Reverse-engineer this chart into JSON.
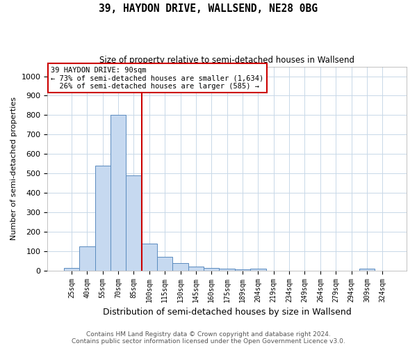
{
  "title1": "39, HAYDON DRIVE, WALLSEND, NE28 0BG",
  "title2": "Size of property relative to semi-detached houses in Wallsend",
  "xlabel": "Distribution of semi-detached houses by size in Wallsend",
  "ylabel": "Number of semi-detached properties",
  "footnote": "Contains HM Land Registry data © Crown copyright and database right 2024.\nContains public sector information licensed under the Open Government Licence v3.0.",
  "bar_labels": [
    "25sqm",
    "40sqm",
    "55sqm",
    "70sqm",
    "85sqm",
    "100sqm",
    "115sqm",
    "130sqm",
    "145sqm",
    "160sqm",
    "175sqm",
    "189sqm",
    "204sqm",
    "219sqm",
    "234sqm",
    "249sqm",
    "264sqm",
    "279sqm",
    "294sqm",
    "309sqm",
    "324sqm"
  ],
  "bar_values": [
    15,
    125,
    540,
    800,
    490,
    140,
    72,
    38,
    22,
    12,
    8,
    5,
    8,
    0,
    0,
    0,
    0,
    0,
    0,
    8,
    0
  ],
  "bar_color": "#c6d9f0",
  "bar_edge_color": "#5a8bbf",
  "property_line_x": 4.5,
  "property_label": "39 HAYDON DRIVE: 90sqm",
  "pct_smaller": "73%",
  "n_smaller": "1,634",
  "pct_larger": "26%",
  "n_larger": "585",
  "annotation_box_edge_color": "#cc0000",
  "ylim": [
    0,
    1050
  ],
  "yticks": [
    0,
    100,
    200,
    300,
    400,
    500,
    600,
    700,
    800,
    900,
    1000
  ],
  "background_color": "#ffffff",
  "grid_color": "#c8d8e8"
}
